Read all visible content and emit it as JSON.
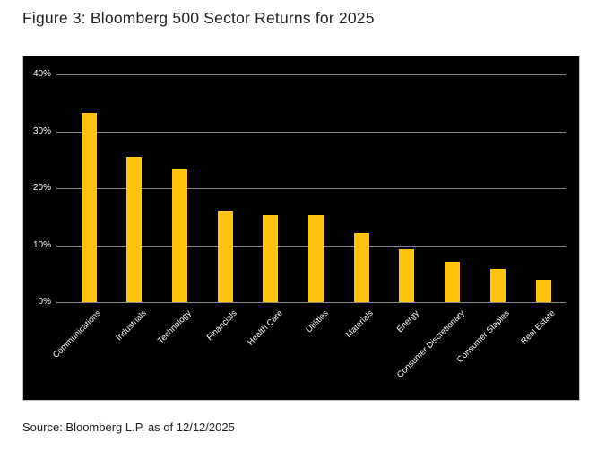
{
  "page": {
    "title": "Figure 3: Bloomberg 500 Sector Returns for 2025",
    "source_note": "Source: Bloomberg L.P. as of 12/12/2025"
  },
  "chart_data": {
    "type": "bar",
    "title": "Figure 3: Bloomberg 500 Sector Returns for 2025",
    "categories": [
      "Communications",
      "Industrials",
      "Technology",
      "Financials",
      "Health Care",
      "Utilities",
      "Materials",
      "Energy",
      "Consumer Discretionary",
      "Consumer Staples",
      "Real Estate"
    ],
    "values": [
      33.2,
      25.5,
      23.3,
      16.0,
      15.2,
      15.2,
      12.2,
      9.3,
      7.1,
      5.8,
      3.9
    ],
    "unit": "%",
    "xlabel": "",
    "ylabel": "",
    "ylim": [
      0,
      40
    ],
    "ytick_labels": [
      "0%",
      "10%",
      "20%",
      "30%",
      "40%"
    ],
    "grid": true,
    "legend": "none",
    "colors": {
      "bar": "#FFC20E",
      "plot_background": "#000000",
      "gridline": "#8A8A8A",
      "tick_text": "#FFFFFF",
      "title_text": "#1F1F1F",
      "source_text": "#1F1F1F",
      "panel_border": "#C2C2C2"
    }
  }
}
